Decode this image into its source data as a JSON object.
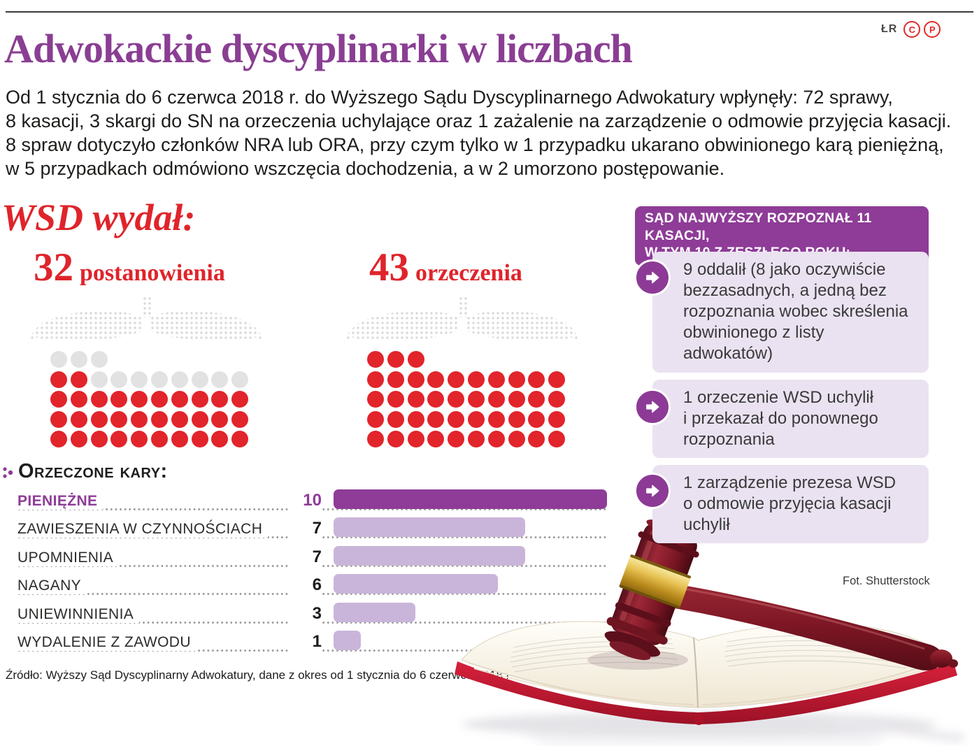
{
  "masthead": {
    "byline": "ŁR",
    "icon_c": "C",
    "icon_p": "P"
  },
  "header": {
    "title": "Adwokackie dyscyplinarki w liczbach",
    "intro": "Od 1 stycznia do 6 czerwca 2018 r. do Wyższego Sądu Dyscyplinarnego Adwokatury wpłynęły: 72 sprawy,\n8 kasacji, 3 skargi do SN na orzeczenia uchylające oraz 1 zażalenie na zarządzenie o odmowie przyjęcia kasacji.\n8 spraw dotyczyło członków NRA lub ORA, przy czym tylko w 1 przypadku ukarano obwinionego karą pieniężną,\nw 5 przypadkach odmówiono wszczęcia dochodzenia, a w 2 umorzono postępowanie."
  },
  "wsd": {
    "heading": "WSD wydał:"
  },
  "sn_panel": {
    "header": "SĄD NAJWYŻSZY ROZPOZNAŁ 11 KASACJI,\nW TYM 10 Z ZESZŁEGO ROKU:",
    "items": [
      {
        "text": "9 oddalił (8 jako oczywiście\nbezzasadnych, a jedną bez\nrozpoznania wobec skreślenia\nobwinionego z listy\nadwokatów)"
      },
      {
        "text": "1 orzeczenie WSD uchylił\ni przekazał do ponownego\nrozpoznania"
      },
      {
        "text": "1 zarządzenie prezesa WSD\no odmowie przyjęcia kasacji\nuchylił"
      }
    ]
  },
  "footer": {
    "source": "Źródło: Wyższy Sąd Dyscyplinarny Adwokatury, dane z okres od 1 stycznia do 6 czerwca 2018 r.",
    "photo_credit": "Fot. Shutterstock"
  },
  "colors": {
    "purple": "#8c3a96",
    "dark_bar": "#8e3c97",
    "light_bar": "#c9b5d9",
    "lavender_box": "#eae2f1",
    "red": "#e2242b",
    "empty_dot": "#e2e2e3",
    "eagle_dot": "#d7d7d7",
    "leader_dot": "#9a9a9a",
    "text": "#1d1d1b"
  },
  "chart_data": [
    {
      "type": "pictogram",
      "value": 32,
      "label": "postanowienia",
      "total": 43,
      "rows": [
        3,
        10,
        10,
        10,
        10
      ],
      "fill_direction": "bottom-up",
      "filled_color": "#e2242b",
      "empty_color": "#e2e2e3"
    },
    {
      "type": "pictogram",
      "value": 43,
      "label": "orzeczenia",
      "total": 43,
      "rows": [
        3,
        10,
        10,
        10,
        10
      ],
      "fill_direction": "bottom-up",
      "filled_color": "#e2242b",
      "empty_color": "#e2e2e3"
    },
    {
      "type": "bar",
      "orientation": "horizontal",
      "title": "Orzeczone kary:",
      "categories": [
        "PIENIĘŻNE",
        "ZAWIESZENIA W CZYNNOŚCIACH",
        "UPOMNIENIA",
        "NAGANY",
        "UNIEWINNIENIA",
        "WYDALENIE Z ZAWODU"
      ],
      "values": [
        10,
        7,
        7,
        6,
        3,
        1
      ],
      "xlim": [
        0,
        10
      ],
      "highlight_index": 0,
      "highlight_color": "#8e3c97",
      "bar_color": "#c9b5d9",
      "legend": "none",
      "grid": "off"
    }
  ]
}
